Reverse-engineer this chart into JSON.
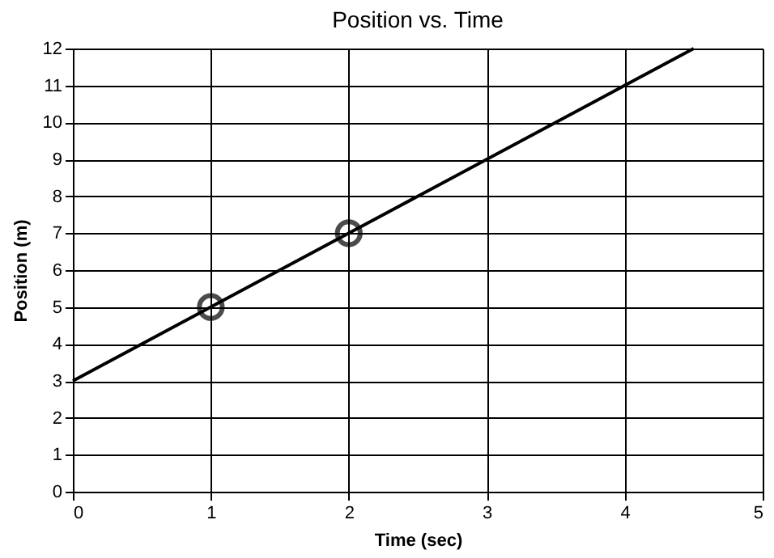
{
  "chart_data": {
    "type": "line",
    "title": "Position vs. Time",
    "xlabel": "Time (sec)",
    "ylabel": "Position (m)",
    "xlim": [
      0,
      5
    ],
    "xticks": [
      0,
      1,
      2,
      3,
      4,
      5
    ],
    "ylim": [
      0,
      12
    ],
    "yticks": [
      0,
      1,
      2,
      3,
      4,
      5,
      6,
      7,
      8,
      9,
      10,
      11,
      12
    ],
    "grid": true,
    "series": [
      {
        "color": "#000000",
        "x": [
          0,
          4.5
        ],
        "values": [
          3,
          12
        ],
        "marker": "none"
      },
      {
        "type": "scatter",
        "color": "#000000",
        "x": [
          1,
          2
        ],
        "values": [
          5,
          7
        ],
        "marker": "circle"
      }
    ]
  }
}
